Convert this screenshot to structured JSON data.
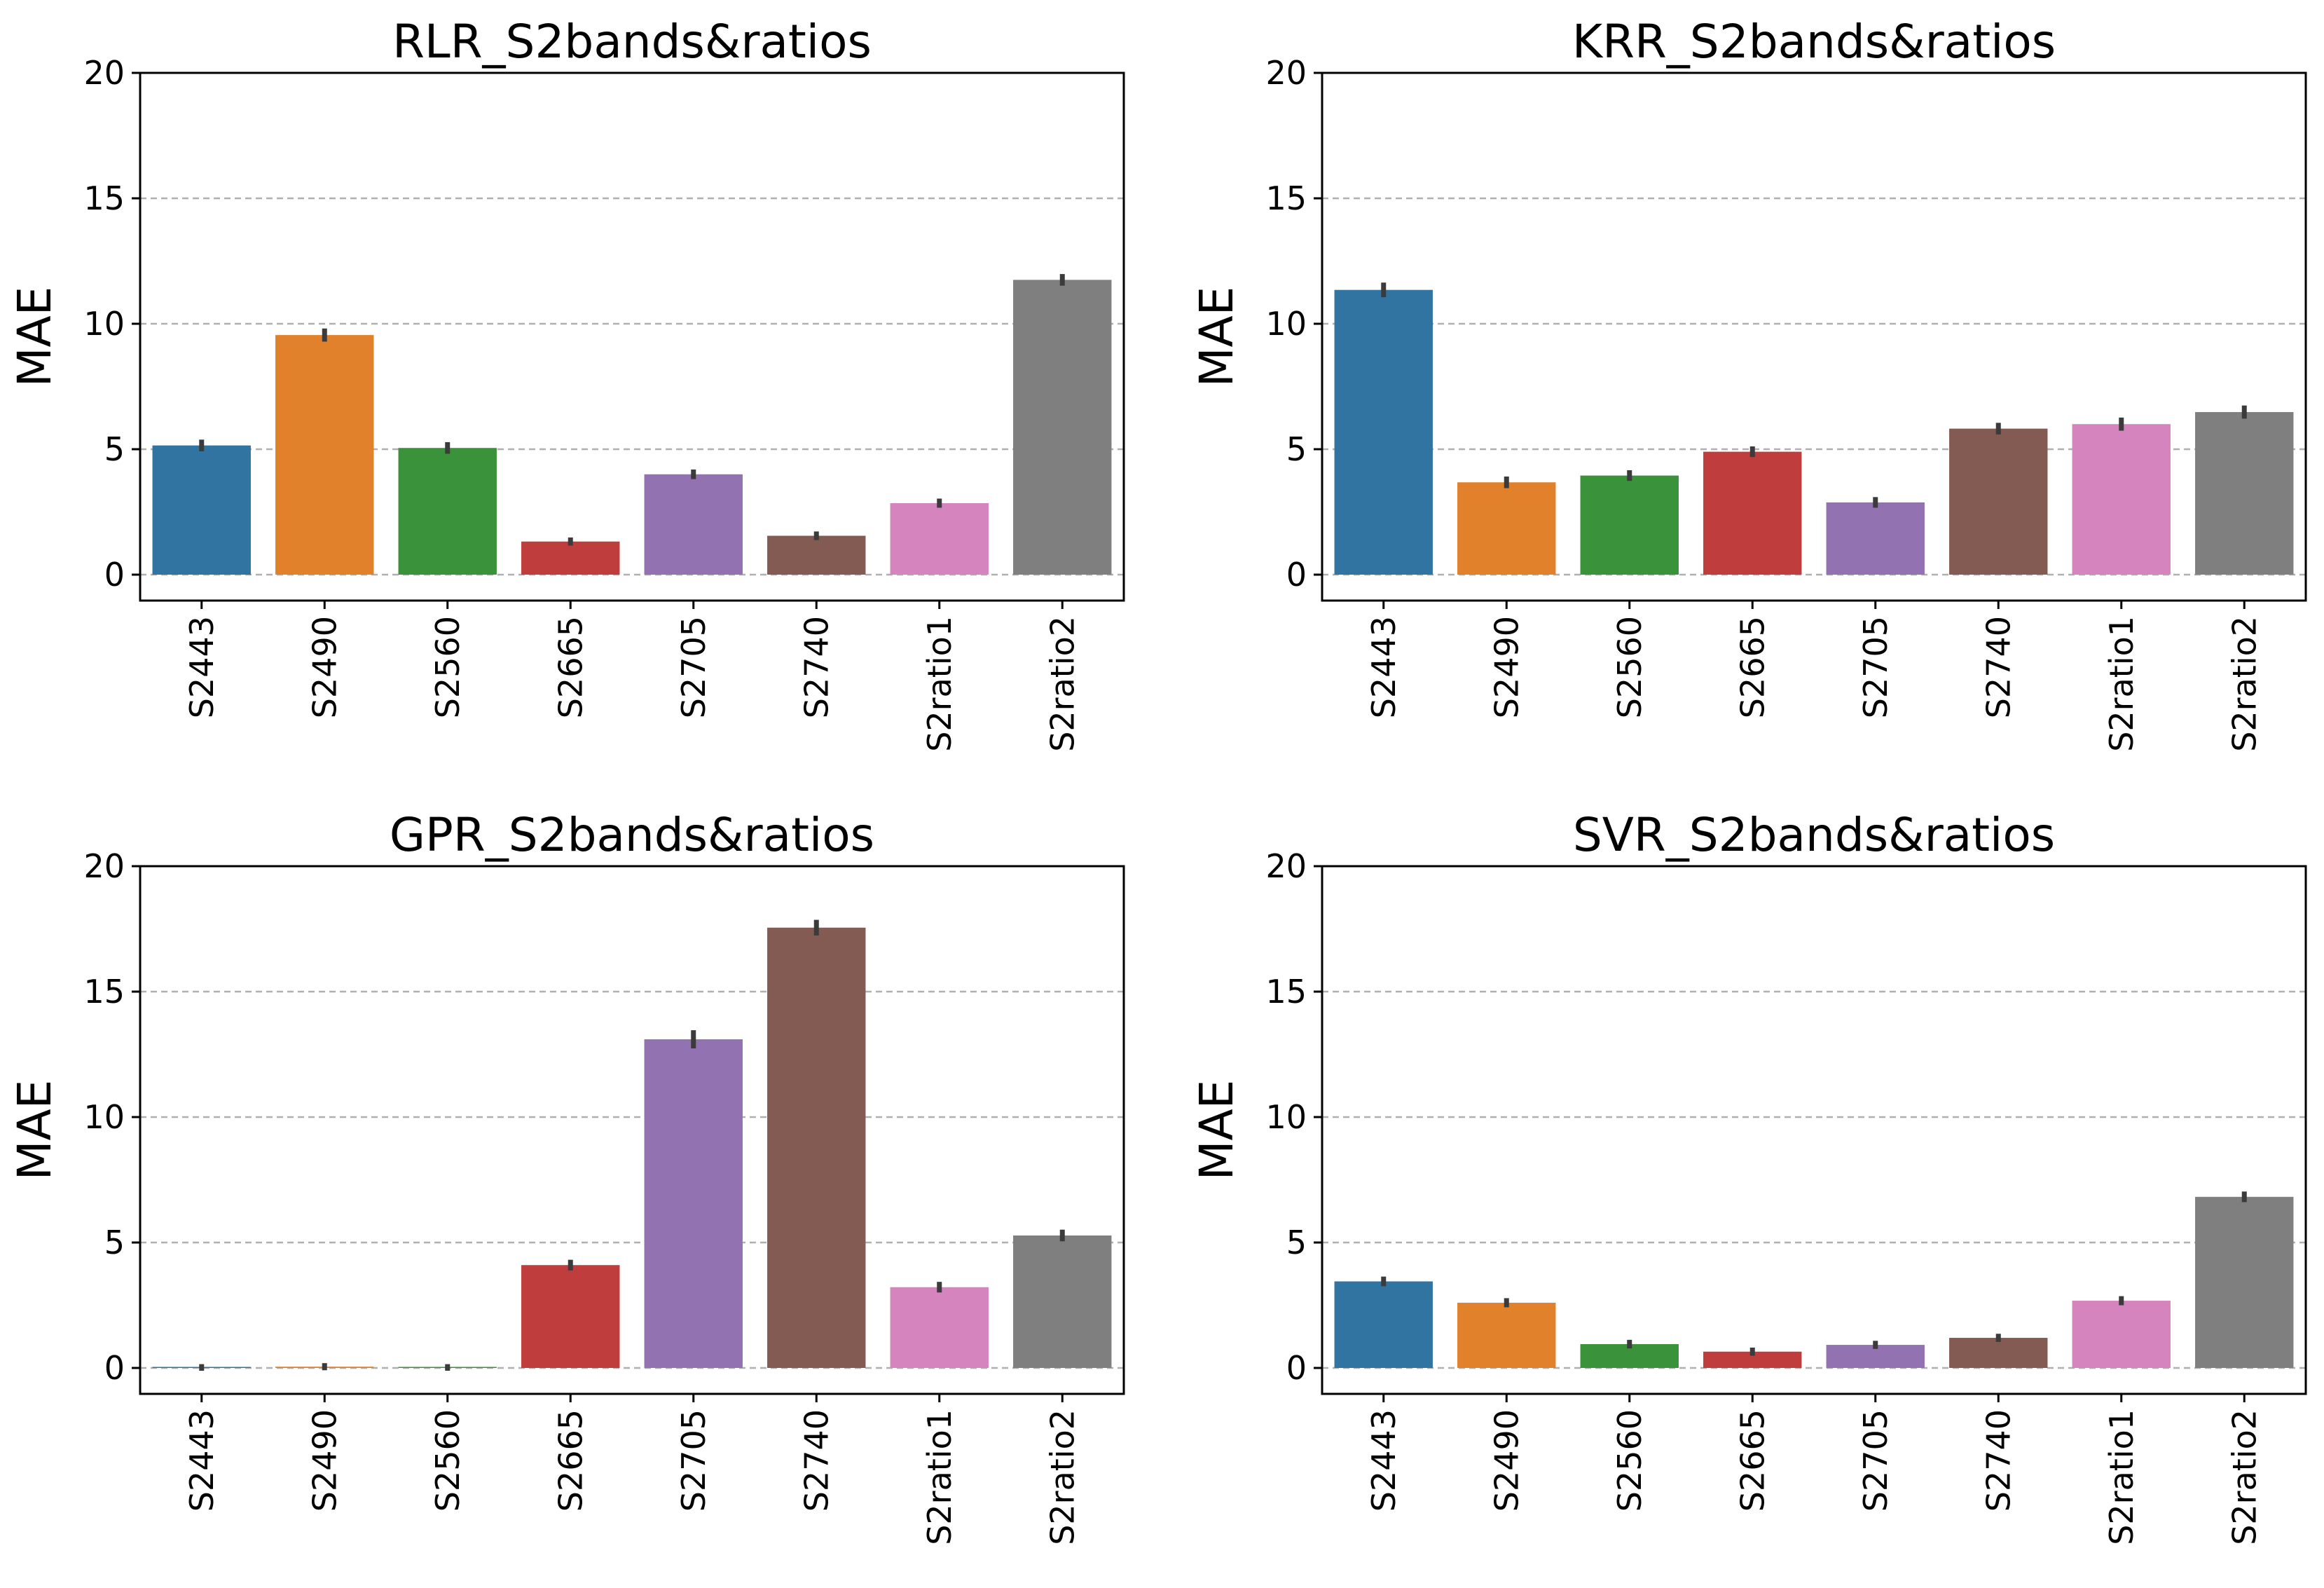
{
  "figure": {
    "layout": "2x2 grid of bar charts",
    "shared_ylabel": "MAE"
  },
  "chart_data": [
    {
      "type": "bar",
      "title": "RLR_S2bands&ratios",
      "xlabel": "",
      "ylabel": "MAE",
      "ylim": [
        -1,
        20
      ],
      "yticks": [
        0,
        5,
        10,
        15,
        20
      ],
      "categories": [
        "S2443",
        "S2490",
        "S2560",
        "S2665",
        "S2705",
        "S2740",
        "S2ratio1",
        "S2ratio2"
      ],
      "values": [
        5.15,
        9.55,
        5.05,
        1.32,
        4.0,
        1.55,
        2.85,
        11.75
      ],
      "errors": [
        0.12,
        0.15,
        0.12,
        0.05,
        0.08,
        0.06,
        0.07,
        0.12
      ],
      "colors": [
        "#3274a1",
        "#e1812c",
        "#3a923a",
        "#c03d3e",
        "#9372b2",
        "#845b53",
        "#d684bd",
        "#7f7f7f"
      ],
      "grid": true
    },
    {
      "type": "bar",
      "title": "KRR_S2bands&ratios",
      "xlabel": "",
      "ylabel": "MAE",
      "ylim": [
        -1,
        20
      ],
      "yticks": [
        0,
        5,
        10,
        15,
        20
      ],
      "categories": [
        "S2443",
        "S2490",
        "S2560",
        "S2665",
        "S2705",
        "S2740",
        "S2ratio1",
        "S2ratio2"
      ],
      "values": [
        11.35,
        3.68,
        3.95,
        4.9,
        2.88,
        5.82,
        6.0,
        6.48
      ],
      "errors": [
        0.18,
        0.12,
        0.1,
        0.1,
        0.1,
        0.12,
        0.15,
        0.15
      ],
      "colors": [
        "#3274a1",
        "#e1812c",
        "#3a923a",
        "#c03d3e",
        "#9372b2",
        "#845b53",
        "#d684bd",
        "#7f7f7f"
      ],
      "grid": true
    },
    {
      "type": "bar",
      "title": "GPR_S2bands&ratios",
      "xlabel": "",
      "ylabel": "MAE",
      "ylim": [
        -1,
        20
      ],
      "yticks": [
        0,
        5,
        10,
        15,
        20
      ],
      "categories": [
        "S2443",
        "S2490",
        "S2560",
        "S2665",
        "S2705",
        "S2740",
        "S2ratio1",
        "S2ratio2"
      ],
      "values": [
        0.02,
        0.05,
        0.02,
        4.1,
        13.1,
        17.55,
        3.22,
        5.28
      ],
      "errors": [
        0.02,
        0.03,
        0.02,
        0.1,
        0.25,
        0.2,
        0.1,
        0.12
      ],
      "colors": [
        "#3274a1",
        "#e1812c",
        "#3a923a",
        "#c03d3e",
        "#9372b2",
        "#845b53",
        "#d684bd",
        "#7f7f7f"
      ],
      "grid": true
    },
    {
      "type": "bar",
      "title": "SVR_S2bands&ratios",
      "xlabel": "",
      "ylabel": "MAE",
      "ylim": [
        -1,
        20
      ],
      "yticks": [
        0,
        5,
        10,
        15,
        20
      ],
      "categories": [
        "S2443",
        "S2490",
        "S2560",
        "S2665",
        "S2705",
        "S2740",
        "S2ratio1",
        "S2ratio2"
      ],
      "values": [
        3.45,
        2.6,
        0.95,
        0.65,
        0.92,
        1.2,
        2.68,
        6.82
      ],
      "errors": [
        0.08,
        0.07,
        0.06,
        0.05,
        0.05,
        0.05,
        0.07,
        0.1
      ],
      "colors": [
        "#3274a1",
        "#e1812c",
        "#3a923a",
        "#c03d3e",
        "#9372b2",
        "#845b53",
        "#d684bd",
        "#7f7f7f"
      ],
      "grid": true
    }
  ]
}
